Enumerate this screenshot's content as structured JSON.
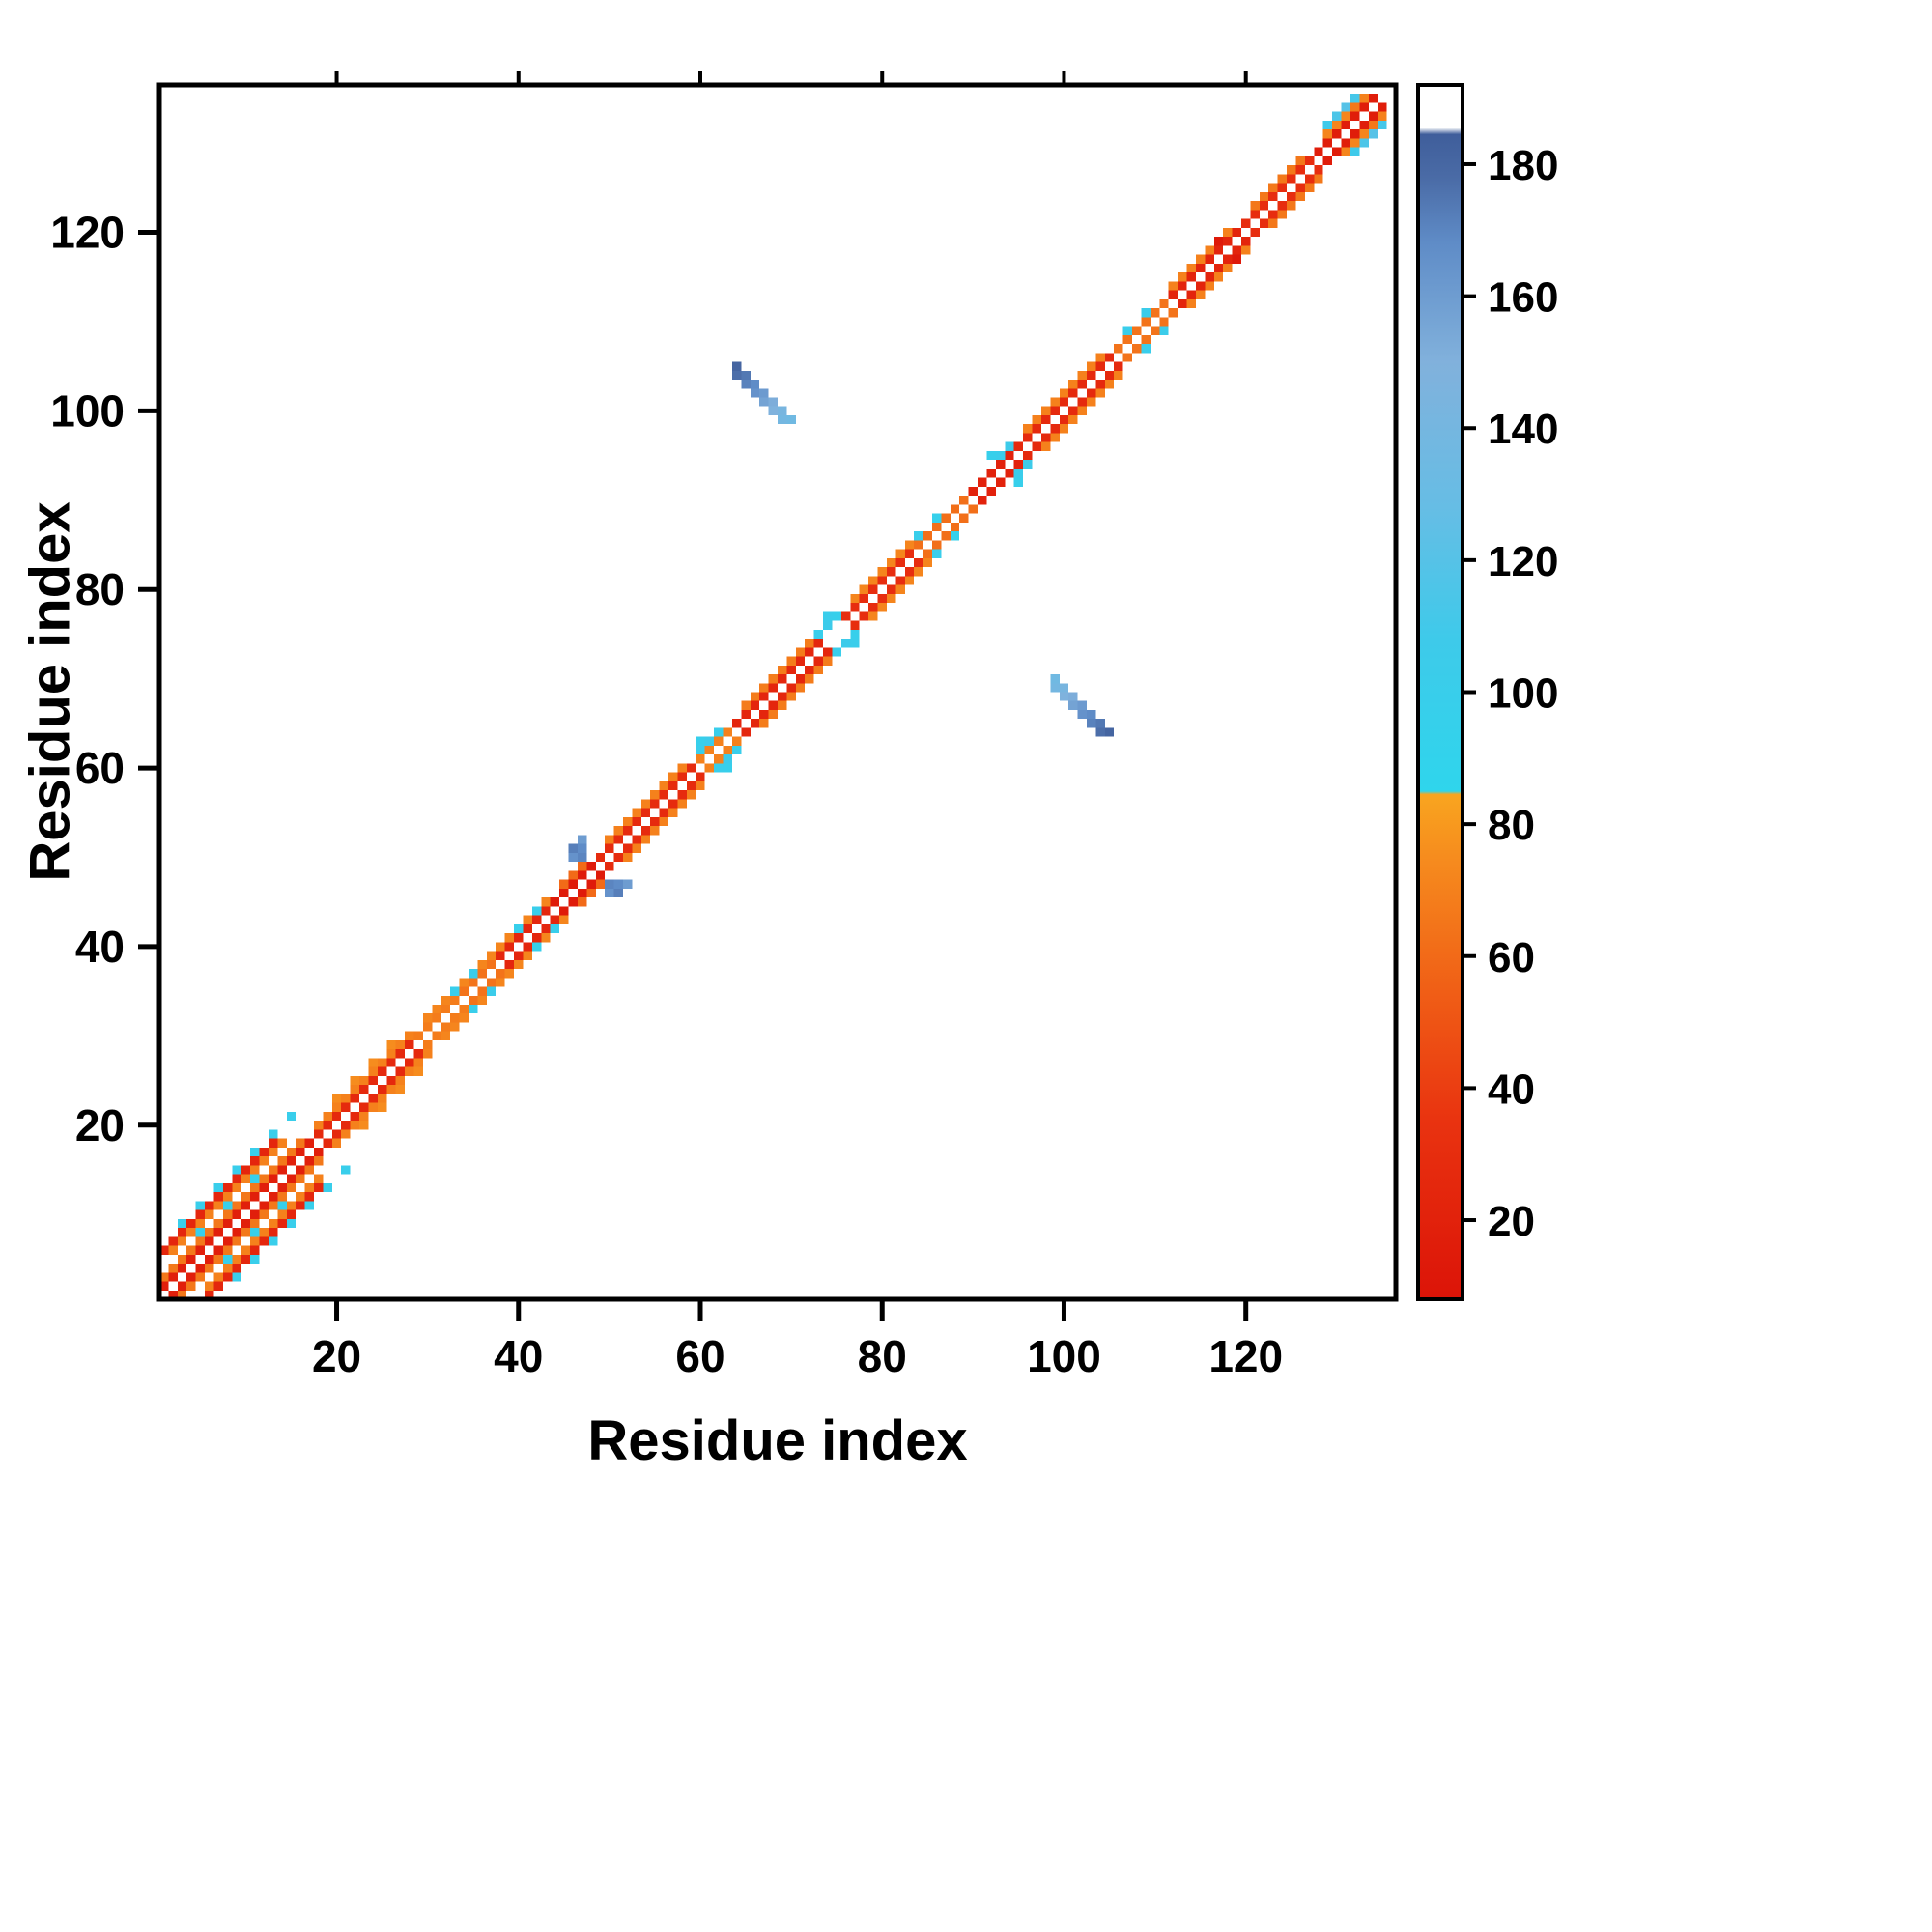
{
  "chart_data": {
    "type": "heatmap",
    "title": "",
    "xlabel": "Residue index",
    "ylabel": "Residue index",
    "n_residues": 135,
    "axis_range": [
      0.5,
      136.5
    ],
    "x_ticks": [
      20,
      40,
      60,
      80,
      100,
      120
    ],
    "y_ticks": [
      20,
      40,
      60,
      80,
      100,
      120
    ],
    "grid": false,
    "symmetric": true,
    "legend_position": "colorbar-right",
    "colorbar": {
      "vmin": 8,
      "vmax": 192,
      "ticks": [
        20,
        40,
        60,
        80,
        100,
        120,
        140,
        160,
        180
      ],
      "stops": [
        {
          "v": 8,
          "c": "#dc1408"
        },
        {
          "v": 35,
          "c": "#e93310"
        },
        {
          "v": 55,
          "c": "#f05f16"
        },
        {
          "v": 75,
          "c": "#f68c1e"
        },
        {
          "v": 84.5,
          "c": "#f9a51f"
        },
        {
          "v": 85,
          "c": "#2fd5ec"
        },
        {
          "v": 108,
          "c": "#3ecaea"
        },
        {
          "v": 128,
          "c": "#66bde5"
        },
        {
          "v": 150,
          "c": "#81b1dc"
        },
        {
          "v": 168,
          "c": "#5f8cc7"
        },
        {
          "v": 178,
          "c": "#4a6ba6"
        },
        {
          "v": 184.5,
          "c": "#3f5e9b"
        },
        {
          "v": 185.5,
          "c": "#ffffff"
        },
        {
          "v": 192,
          "c": "#ffffff"
        }
      ]
    },
    "diagonal_segments": [
      {
        "i0": 1,
        "i1": 17,
        "d": 1,
        "v": 18
      },
      {
        "i0": 1,
        "i1": 16,
        "d": 2,
        "v": 66
      },
      {
        "i0": 2,
        "i1": 14,
        "d": 4,
        "v": 70
      },
      {
        "i0": 1,
        "i1": 13,
        "d": 5,
        "v": 24
      },
      {
        "i0": 3,
        "i1": 15,
        "d": 6,
        "step": 2,
        "v": 100
      },
      {
        "i0": 5,
        "i1": 11,
        "d": 3,
        "step": 3,
        "v": 98
      },
      {
        "i0": 18,
        "i1": 29,
        "d": 1,
        "v": 26
      },
      {
        "i0": 18,
        "i1": 28,
        "d": 2,
        "v": 70
      },
      {
        "i0": 20,
        "i1": 26,
        "d": 3,
        "step": 2,
        "v": 75
      },
      {
        "i0": 29,
        "i1": 33,
        "d": 1,
        "v": 68
      },
      {
        "i0": 30,
        "i1": 43,
        "d": 2,
        "v": 72
      },
      {
        "i0": 34,
        "i1": 37,
        "d": 1,
        "v": 64
      },
      {
        "i0": 38,
        "i1": 44,
        "d": 1,
        "v": 24
      },
      {
        "i0": 44,
        "i1": 48,
        "d": 1,
        "v": 14
      },
      {
        "i0": 45,
        "i1": 47,
        "d": 2,
        "v": 60
      },
      {
        "i0": 49,
        "i1": 59,
        "d": 1,
        "v": 28
      },
      {
        "i0": 50,
        "i1": 58,
        "d": 2,
        "v": 70
      },
      {
        "i0": 60,
        "i1": 63,
        "d": 1,
        "v": 70
      },
      {
        "i0": 64,
        "i1": 73,
        "d": 1,
        "v": 24
      },
      {
        "i0": 65,
        "i1": 72,
        "d": 2,
        "v": 68
      },
      {
        "i0": 76,
        "i1": 83,
        "d": 1,
        "v": 30
      },
      {
        "i0": 77,
        "i1": 83,
        "d": 2,
        "v": 72
      },
      {
        "i0": 84,
        "i1": 89,
        "d": 1,
        "v": 62
      },
      {
        "i0": 90,
        "i1": 94,
        "d": 1,
        "v": 20
      },
      {
        "i0": 95,
        "i1": 105,
        "d": 1,
        "v": 26
      },
      {
        "i0": 96,
        "i1": 104,
        "d": 2,
        "v": 70
      },
      {
        "i0": 106,
        "i1": 111,
        "d": 1,
        "v": 64
      },
      {
        "i0": 112,
        "i1": 119,
        "d": 1,
        "v": 22
      },
      {
        "i0": 112,
        "i1": 118,
        "d": 2,
        "v": 70
      },
      {
        "i0": 120,
        "i1": 127,
        "d": 1,
        "v": 30
      },
      {
        "i0": 121,
        "i1": 126,
        "d": 2,
        "v": 66
      },
      {
        "i0": 128,
        "i1": 134,
        "d": 1,
        "v": 16
      },
      {
        "i0": 129,
        "i1": 133,
        "d": 2,
        "v": 72
      }
    ],
    "cells": [
      [
        33,
        35,
        100
      ],
      [
        35,
        37,
        104
      ],
      [
        40,
        42,
        98
      ],
      [
        42,
        44,
        100
      ],
      [
        60,
        62,
        100
      ],
      [
        61,
        63,
        105
      ],
      [
        62,
        64,
        100
      ],
      [
        60,
        63,
        98
      ],
      [
        73,
        75,
        100
      ],
      [
        74,
        76,
        105
      ],
      [
        75,
        77,
        98
      ],
      [
        74,
        77,
        102
      ],
      [
        84,
        86,
        100
      ],
      [
        86,
        88,
        96
      ],
      [
        92,
        95,
        98
      ],
      [
        93,
        95,
        102
      ],
      [
        94,
        96,
        106
      ],
      [
        107,
        109,
        100
      ],
      [
        109,
        111,
        104
      ],
      [
        117,
        119,
        12
      ],
      [
        129,
        132,
        108
      ],
      [
        130,
        133,
        115
      ],
      [
        131,
        134,
        120
      ],
      [
        132,
        135,
        112
      ],
      [
        132,
        134,
        66
      ],
      [
        133,
        135,
        70
      ],
      [
        46,
        50,
        165
      ],
      [
        47,
        50,
        170
      ],
      [
        46,
        51,
        172
      ],
      [
        47,
        51,
        168
      ],
      [
        47,
        52,
        160
      ],
      [
        64,
        105,
        181
      ],
      [
        64,
        104,
        177
      ],
      [
        65,
        104,
        174
      ],
      [
        65,
        103,
        171
      ],
      [
        66,
        103,
        168
      ],
      [
        66,
        102,
        165
      ],
      [
        67,
        102,
        161
      ],
      [
        67,
        101,
        157
      ],
      [
        68,
        101,
        152
      ],
      [
        68,
        100,
        148
      ],
      [
        69,
        100,
        143
      ],
      [
        69,
        99,
        139
      ],
      [
        70,
        99,
        136
      ]
    ]
  }
}
